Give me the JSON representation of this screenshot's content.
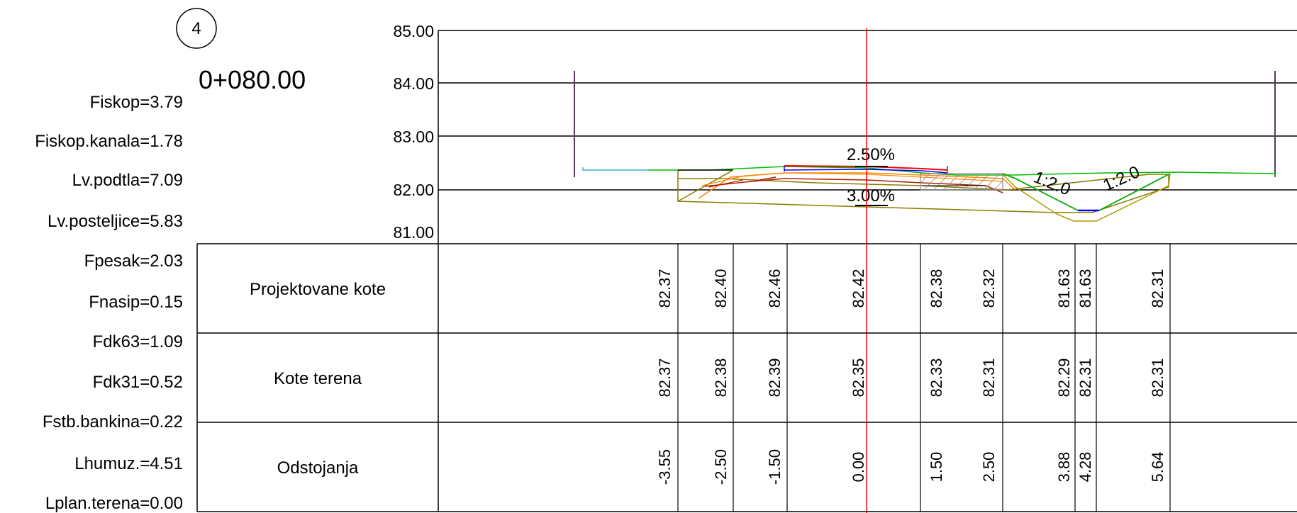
{
  "sheet": {
    "number": "4",
    "station": "0+080.00"
  },
  "parameters": [
    "Fiskop=3.79",
    "Fiskop.kanala=1.78",
    "Lv.podtla=7.09",
    "Lv.posteljice=5.83",
    "Fpesak=2.03",
    "Fnasip=0.15",
    "Fdk63=1.09",
    "Fdk31=0.52",
    "Fstb.bankina=0.22",
    "Lhumuz.=4.51",
    "Lplan.terena=0.00"
  ],
  "elevation_axis": {
    "labels": [
      "85.00",
      "84.00",
      "83.00",
      "82.00",
      "81.00"
    ],
    "values": [
      85,
      84,
      83,
      82,
      81
    ]
  },
  "annotations": {
    "top_slope": "2.50%",
    "bottom_slope": "3.00%",
    "ditch_slope_left": "1:2.0",
    "ditch_slope_right": "1:2.0"
  },
  "table": {
    "rows": [
      {
        "label": "Projektovane kote",
        "values": [
          "82.37",
          "82.40",
          "82.46",
          "82.42",
          "82.38",
          "82.32",
          "81.63",
          "81.63",
          "82.31"
        ]
      },
      {
        "label": "Kote terena",
        "values": [
          "82.37",
          "82.38",
          "82.39",
          "82.35",
          "82.33",
          "82.31",
          "82.29",
          "82.31",
          "82.31"
        ]
      },
      {
        "label": "Odstojanja",
        "values": [
          "-3.55",
          "-2.50",
          "-1.50",
          "0.00",
          "1.50",
          "2.50",
          "3.88",
          "4.28",
          "5.64"
        ]
      }
    ]
  },
  "colors": {
    "axis": "#000000",
    "centerline": "#ff0000",
    "terrain": "#00bb00",
    "left_terrain": "#3ab0c8",
    "pavement": "#ff0000",
    "pavement_blue": "#0000ff",
    "layer_orange": "#ff8800",
    "layer_brown": "#aa2200",
    "layer_olive": "#8a7a00",
    "ditch_bottom": "#0000ff",
    "hatch": "#888888"
  }
}
